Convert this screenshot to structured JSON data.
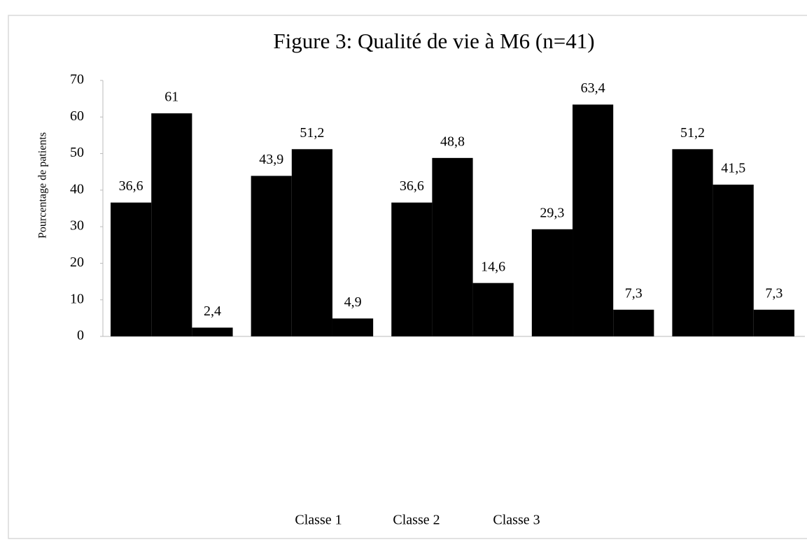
{
  "chart_data": {
    "type": "bar",
    "title": "Figure 3: Qualité de vie à M6 (n=41)",
    "y_label": "Pourcentage de patients",
    "categories": [
      null,
      null,
      null,
      null,
      null
    ],
    "series": [
      {
        "name": "Classe 1",
        "color": "#000000",
        "values": [
          36.6,
          43.9,
          36.6,
          29.3,
          51.2
        ],
        "value_labels": [
          "36,6",
          "43,9",
          "36,6",
          "29,3",
          "51,2"
        ]
      },
      {
        "name": "Classe 2",
        "color": "#000000",
        "values": [
          61,
          51.2,
          48.8,
          63.4,
          41.5
        ],
        "value_labels": [
          "61",
          "51,2",
          "48,8",
          "63,4",
          "41,5"
        ]
      },
      {
        "name": "Classe 3",
        "color": "#000000",
        "values": [
          2.4,
          4.9,
          14.6,
          7.3,
          7.3
        ],
        "value_labels": [
          "2,4",
          "4,9",
          "14,6",
          "7,3",
          "7,3"
        ]
      }
    ],
    "ylim": [
      0,
      70
    ],
    "yticks": [
      0,
      10,
      20,
      30,
      40,
      50,
      60,
      70
    ],
    "grid": false,
    "legend": "bottom"
  }
}
